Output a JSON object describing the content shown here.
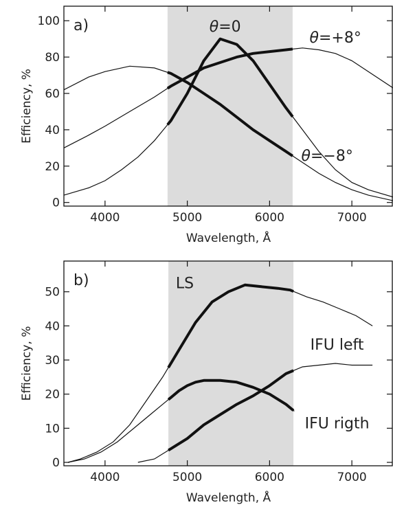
{
  "chart_data": [
    {
      "type": "line",
      "panel_label": "a)",
      "xlabel": "Wavelength, Å",
      "ylabel": "Efficiency, %",
      "xlim": [
        3500,
        7500
      ],
      "ylim": [
        -2,
        108
      ],
      "x_ticks": [
        4000,
        5000,
        6000,
        7000
      ],
      "y_ticks": [
        0,
        20,
        40,
        60,
        80,
        100
      ],
      "shaded_band": [
        4760,
        6280
      ],
      "annotations": [
        {
          "id": "theta0",
          "text": "θ=0",
          "x": 5460,
          "y": 94
        },
        {
          "id": "thetaplus",
          "text": "θ=+8°",
          "x": 6800,
          "y": 88
        },
        {
          "id": "thetaminus",
          "text": "θ=−8°",
          "x": 6700,
          "y": 23
        }
      ],
      "series": [
        {
          "id": "theta0",
          "x": [
            3500,
            3800,
            4000,
            4200,
            4400,
            4600,
            4800,
            5000,
            5200,
            5400,
            5600,
            5800,
            6000,
            6200,
            6400,
            6600,
            6800,
            7000,
            7200,
            7500
          ],
          "y": [
            4,
            8,
            12,
            18,
            25,
            34,
            45,
            60,
            78,
            90,
            87,
            78,
            65,
            52,
            40,
            28,
            18,
            11,
            7,
            3
          ]
        },
        {
          "id": "thetaminus",
          "x": [
            3500,
            3800,
            4000,
            4300,
            4600,
            4800,
            5000,
            5200,
            5400,
            5600,
            5800,
            6000,
            6200,
            6400,
            6600,
            6800,
            7000,
            7200,
            7500
          ],
          "y": [
            62,
            69,
            72,
            75,
            74,
            71,
            66,
            60,
            54,
            47,
            40,
            34,
            28,
            22,
            16,
            11,
            7,
            4,
            1
          ]
        },
        {
          "id": "thetaplus",
          "x": [
            3500,
            3800,
            4000,
            4300,
            4600,
            4800,
            5000,
            5200,
            5400,
            5600,
            5800,
            6000,
            6200,
            6400,
            6600,
            6800,
            7000,
            7200,
            7500
          ],
          "y": [
            30,
            37,
            42,
            50,
            58,
            64,
            69,
            74,
            77,
            80,
            82,
            83,
            84,
            85,
            84,
            82,
            78,
            72,
            63
          ]
        }
      ]
    },
    {
      "type": "line",
      "panel_label": "b)",
      "xlabel": "Wavelength, Å",
      "ylabel": "Efficiency, %",
      "xlim": [
        3500,
        7500
      ],
      "ylim": [
        -1,
        59
      ],
      "x_ticks": [
        4000,
        5000,
        6000,
        7000
      ],
      "y_ticks": [
        0,
        10,
        20,
        30,
        40,
        50
      ],
      "shaded_band": [
        4770,
        6290
      ],
      "annotations": [
        {
          "id": "ls",
          "text": "LS",
          "x": 4970,
          "y": 51
        },
        {
          "id": "ifu-left",
          "text": "IFU left",
          "x": 6820,
          "y": 33
        },
        {
          "id": "ifu-rigth",
          "text": "IFU rigth",
          "x": 6820,
          "y": 10
        }
      ],
      "series": [
        {
          "id": "ls",
          "x": [
            3550,
            3700,
            3900,
            4100,
            4300,
            4500,
            4700,
            4900,
            5100,
            5300,
            5500,
            5700,
            5900,
            6100,
            6250,
            6450,
            6650,
            6850,
            7050,
            7250
          ],
          "y": [
            0,
            1,
            3,
            6,
            11,
            18,
            25,
            33,
            41,
            47,
            50,
            52,
            51.5,
            51,
            50.5,
            48.5,
            47,
            45,
            43,
            40
          ]
        },
        {
          "id": "ifu-left",
          "x": [
            3550,
            3750,
            3950,
            4150,
            4350,
            4550,
            4700,
            4800,
            4900,
            5000,
            5100,
            5200,
            5300,
            5400,
            5600,
            5800,
            6000,
            6200,
            6300
          ],
          "y": [
            0,
            1,
            3,
            6,
            10,
            14,
            17,
            19,
            21,
            22.5,
            23.5,
            24,
            24,
            24,
            23.5,
            22,
            20,
            17,
            15
          ]
        },
        {
          "id": "ifu-rigth",
          "x": [
            4400,
            4600,
            4800,
            5000,
            5200,
            5400,
            5600,
            5800,
            6000,
            6200,
            6400,
            6600,
            6800,
            7000,
            7150,
            7250
          ],
          "y": [
            0,
            1,
            4,
            7,
            11,
            14,
            17,
            19.5,
            22.5,
            26,
            28,
            28.5,
            29,
            28.5,
            28.5,
            28.5
          ]
        }
      ]
    }
  ]
}
